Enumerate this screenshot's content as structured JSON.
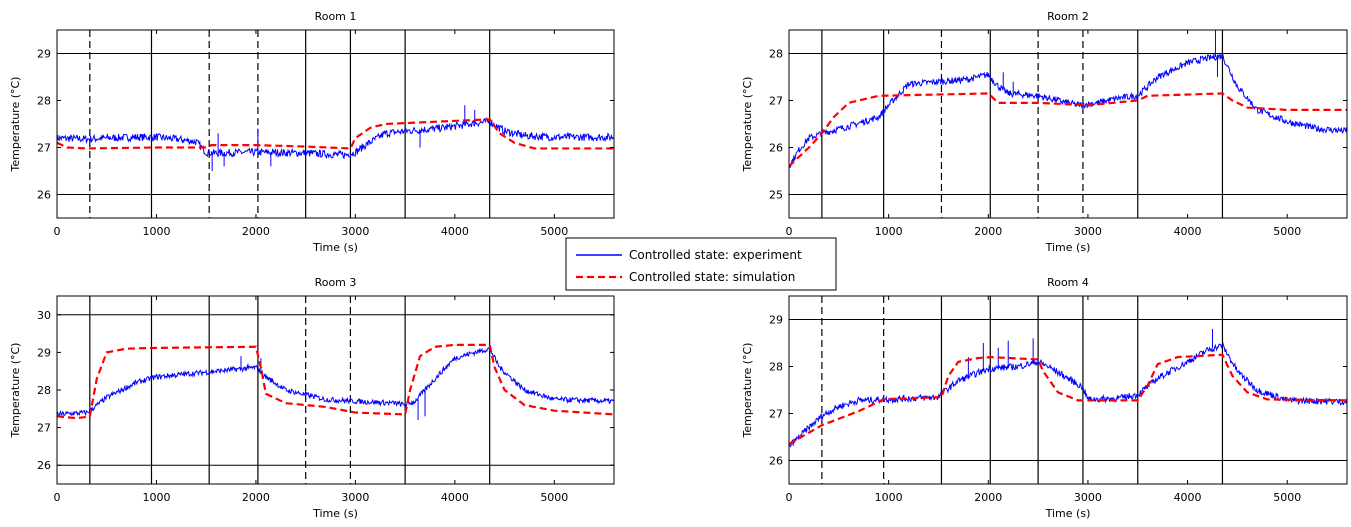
{
  "legend": {
    "entries": [
      {
        "label": "Controlled state: experiment",
        "color": "#0000ff",
        "style": "solid"
      },
      {
        "label": "Controlled state: simulation",
        "color": "#ff0000",
        "style": "dashed"
      }
    ],
    "placement": "center"
  },
  "chart_data": [
    {
      "type": "line",
      "title": "Room 1",
      "xlabel": "Time (s)",
      "ylabel": "Temperature (°C)",
      "xlim": [
        0,
        5600
      ],
      "ylim": [
        25.5,
        29.5
      ],
      "xticks": [
        0,
        1000,
        2000,
        3000,
        4000,
        5000
      ],
      "yticks": [
        26,
        27,
        28,
        29
      ],
      "grid_y": [
        26,
        29
      ],
      "solid_vlines": [
        950,
        2500,
        2950,
        3500,
        4350
      ],
      "dashed_vlines": [
        330,
        1530,
        2020
      ],
      "series": [
        {
          "name": "Controlled state: experiment",
          "color": "#0000ff",
          "noise": 0.08,
          "spikes": [
            [
              1560,
              26.5
            ],
            [
              1620,
              27.3
            ],
            [
              1680,
              26.6
            ],
            [
              2020,
              27.4
            ],
            [
              2150,
              26.6
            ],
            [
              4100,
              27.9
            ],
            [
              4200,
              27.8
            ],
            [
              3650,
              27.0
            ]
          ],
          "x": [
            0,
            300,
            500,
            800,
            1000,
            1200,
            1400,
            1500,
            1600,
            2000,
            2500,
            2900,
            3000,
            3100,
            3300,
            3500,
            3800,
            4000,
            4200,
            4350,
            4500,
            4700,
            5000,
            5300,
            5600
          ],
          "y": [
            27.2,
            27.18,
            27.2,
            27.22,
            27.22,
            27.18,
            27.12,
            26.9,
            26.88,
            26.9,
            26.88,
            26.84,
            26.9,
            27.05,
            27.3,
            27.35,
            27.4,
            27.45,
            27.52,
            27.55,
            27.35,
            27.25,
            27.22,
            27.22,
            27.22
          ]
        },
        {
          "name": "Controlled state: simulation",
          "color": "#ff0000",
          "x": [
            0,
            100,
            300,
            1000,
            1500,
            1550,
            2000,
            2500,
            2950,
            3000,
            3150,
            3300,
            4350,
            4450,
            4600,
            4800,
            5600
          ],
          "y": [
            27.1,
            27.0,
            26.98,
            27.0,
            27.0,
            27.05,
            27.05,
            27.02,
            26.98,
            27.2,
            27.42,
            27.5,
            27.6,
            27.3,
            27.1,
            26.98,
            26.98
          ]
        }
      ]
    },
    {
      "type": "line",
      "title": "Room 2",
      "xlabel": "Time (s)",
      "ylabel": "Temperature (°C)",
      "xlim": [
        0,
        5600
      ],
      "ylim": [
        24.5,
        28.5
      ],
      "xticks": [
        0,
        1000,
        2000,
        3000,
        4000,
        5000
      ],
      "yticks": [
        25,
        26,
        27,
        28
      ],
      "grid_y": [
        25,
        28
      ],
      "solid_vlines": [
        330,
        950,
        2020,
        3500,
        4350
      ],
      "dashed_vlines": [
        1530,
        2500,
        2950
      ],
      "series": [
        {
          "name": "Controlled state: experiment",
          "color": "#0000ff",
          "noise": 0.07,
          "spikes": [
            [
              2150,
              27.6
            ],
            [
              2250,
              27.4
            ],
            [
              2950,
              26.8
            ],
            [
              4280,
              28.5
            ],
            [
              4300,
              27.5
            ]
          ],
          "x": [
            0,
            100,
            200,
            330,
            600,
            900,
            1000,
            1200,
            1500,
            1800,
            2000,
            2100,
            2200,
            2500,
            2700,
            2900,
            3100,
            3300,
            3500,
            3700,
            4000,
            4200,
            4350,
            4500,
            4700,
            5000,
            5300,
            5600
          ],
          "y": [
            25.6,
            25.95,
            26.2,
            26.3,
            26.45,
            26.65,
            26.9,
            27.35,
            27.4,
            27.45,
            27.55,
            27.3,
            27.15,
            27.1,
            27.0,
            26.9,
            26.95,
            27.05,
            27.1,
            27.5,
            27.8,
            27.9,
            27.95,
            27.3,
            26.8,
            26.55,
            26.4,
            26.35
          ]
        },
        {
          "name": "Controlled state: simulation",
          "color": "#ff0000",
          "x": [
            0,
            200,
            330,
            450,
            600,
            900,
            2000,
            2100,
            2500,
            3000,
            3500,
            3600,
            4350,
            4450,
            4600,
            5000,
            5600
          ],
          "y": [
            25.6,
            26.0,
            26.3,
            26.65,
            26.95,
            27.1,
            27.15,
            26.95,
            26.95,
            26.9,
            27.0,
            27.1,
            27.15,
            27.0,
            26.85,
            26.8,
            26.8
          ]
        }
      ]
    },
    {
      "type": "line",
      "title": "Room 3",
      "xlabel": "Time (s)",
      "ylabel": "Temperature (°C)",
      "xlim": [
        0,
        5600
      ],
      "ylim": [
        25.5,
        30.5
      ],
      "xticks": [
        0,
        1000,
        2000,
        3000,
        4000,
        5000
      ],
      "yticks": [
        26,
        27,
        28,
        29,
        30
      ],
      "grid_y": [
        26,
        30
      ],
      "solid_vlines": [
        330,
        950,
        1530,
        2020,
        3500,
        4350
      ],
      "dashed_vlines": [
        2500,
        2950
      ],
      "series": [
        {
          "name": "Controlled state: experiment",
          "color": "#0000ff",
          "noise": 0.07,
          "spikes": [
            [
              1850,
              28.9
            ],
            [
              1920,
              28.7
            ],
            [
              2050,
              28.85
            ],
            [
              3630,
              27.2
            ],
            [
              3700,
              27.3
            ],
            [
              3800,
              28.3
            ]
          ],
          "x": [
            0,
            300,
            330,
            500,
            800,
            1000,
            1400,
            1800,
            2000,
            2100,
            2300,
            2700,
            3000,
            3400,
            3500,
            3600,
            3800,
            4000,
            4200,
            4350,
            4450,
            4700,
            5000,
            5600
          ],
          "y": [
            27.35,
            27.4,
            27.45,
            27.8,
            28.2,
            28.35,
            28.45,
            28.55,
            28.6,
            28.35,
            28.0,
            27.75,
            27.7,
            27.65,
            27.6,
            27.7,
            28.3,
            28.85,
            29.0,
            29.1,
            28.6,
            28.0,
            27.75,
            27.7
          ]
        },
        {
          "name": "Controlled state: simulation",
          "color": "#ff0000",
          "x": [
            0,
            200,
            330,
            400,
            500,
            700,
            1000,
            2000,
            2050,
            2100,
            2300,
            2700,
            3000,
            3500,
            3550,
            3650,
            3800,
            4000,
            4350,
            4400,
            4500,
            4700,
            5000,
            5600
          ],
          "y": [
            27.3,
            27.25,
            27.3,
            28.3,
            29.0,
            29.1,
            29.12,
            29.15,
            28.6,
            27.9,
            27.65,
            27.55,
            27.4,
            27.35,
            28.0,
            28.9,
            29.15,
            29.2,
            29.2,
            28.6,
            28.0,
            27.6,
            27.45,
            27.35
          ]
        }
      ]
    },
    {
      "type": "line",
      "title": "Room 4",
      "xlabel": "Time (s)",
      "ylabel": "Temperature (°C)",
      "xlim": [
        0,
        5600
      ],
      "ylim": [
        25.5,
        29.5
      ],
      "xticks": [
        0,
        1000,
        2000,
        3000,
        4000,
        5000
      ],
      "yticks": [
        26,
        27,
        28,
        29
      ],
      "grid_y": [
        26,
        29
      ],
      "solid_vlines": [
        1530,
        2020,
        2500,
        2950,
        3500,
        4350
      ],
      "dashed_vlines": [
        330,
        950
      ],
      "series": [
        {
          "name": "Controlled state: experiment",
          "color": "#0000ff",
          "noise": 0.07,
          "spikes": [
            [
              1950,
              28.5
            ],
            [
              2100,
              28.4
            ],
            [
              2200,
              28.55
            ],
            [
              2450,
              28.6
            ],
            [
              1800,
              28.2
            ],
            [
              4250,
              28.8
            ]
          ],
          "x": [
            0,
            200,
            330,
            500,
            700,
            1000,
            1500,
            1550,
            1700,
            2000,
            2300,
            2500,
            2600,
            2800,
            2950,
            3000,
            3300,
            3500,
            3700,
            4000,
            4200,
            4350,
            4500,
            4700,
            5000,
            5600
          ],
          "y": [
            26.3,
            26.7,
            26.95,
            27.15,
            27.28,
            27.3,
            27.35,
            27.45,
            27.7,
            27.95,
            28.0,
            28.1,
            28.0,
            27.75,
            27.55,
            27.3,
            27.32,
            27.4,
            27.75,
            28.1,
            28.35,
            28.45,
            27.9,
            27.5,
            27.28,
            27.25
          ]
        },
        {
          "name": "Controlled state: simulation",
          "color": "#ff0000",
          "x": [
            0,
            330,
            700,
            950,
            1530,
            1600,
            1700,
            1900,
            2020,
            2500,
            2550,
            2700,
            2900,
            3500,
            3600,
            3700,
            3900,
            4350,
            4450,
            4600,
            4800,
            5600
          ],
          "y": [
            26.35,
            26.75,
            27.05,
            27.3,
            27.35,
            27.8,
            28.1,
            28.18,
            28.2,
            28.15,
            27.9,
            27.45,
            27.28,
            27.28,
            27.6,
            28.05,
            28.2,
            28.25,
            27.8,
            27.45,
            27.3,
            27.28
          ]
        }
      ]
    }
  ]
}
